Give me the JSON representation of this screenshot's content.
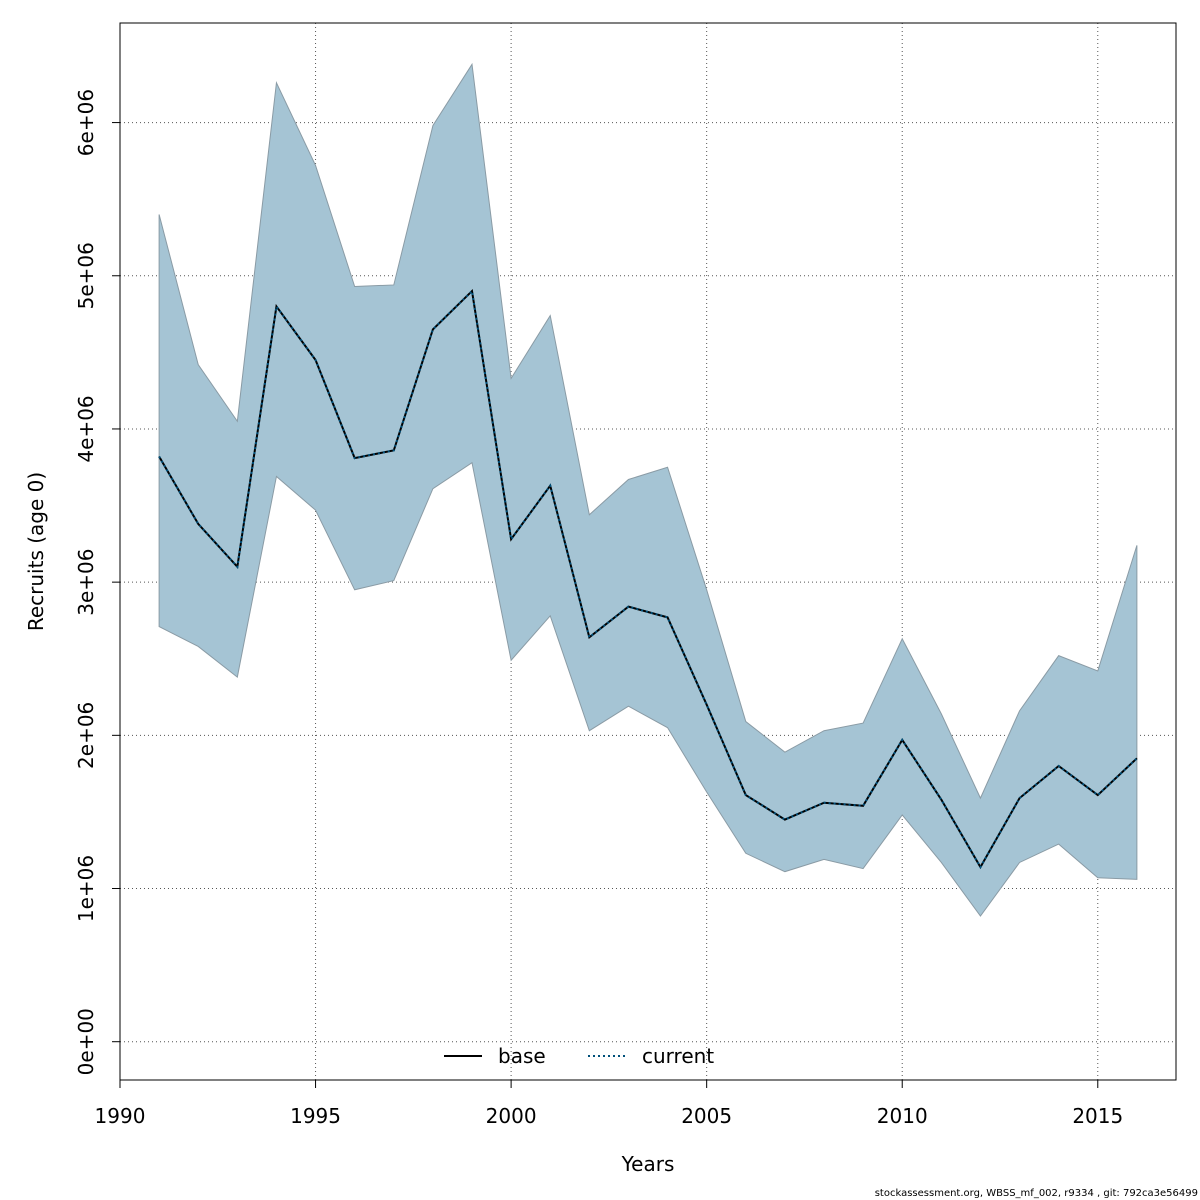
{
  "chart_data": {
    "type": "line",
    "xlabel": "Years",
    "ylabel": "Recruits (age 0)",
    "xlim": [
      1990,
      2017
    ],
    "ylim": [
      -250000,
      6650000
    ],
    "x_ticks": [
      1990,
      1995,
      2000,
      2005,
      2010,
      2015
    ],
    "x_tick_labels": [
      "1990",
      "1995",
      "2000",
      "2005",
      "2010",
      "2015"
    ],
    "y_ticks": [
      0,
      1000000,
      2000000,
      3000000,
      4000000,
      5000000,
      6000000
    ],
    "y_tick_labels": [
      "0e+00",
      "1e+06",
      "2e+06",
      "3e+06",
      "4e+06",
      "5e+06",
      "6e+06"
    ],
    "grid": true,
    "legend_position": "bottom-center",
    "x": [
      1991,
      1992,
      1993,
      1994,
      1995,
      1996,
      1997,
      1998,
      1999,
      2000,
      2001,
      2002,
      2003,
      2004,
      2005,
      2006,
      2007,
      2008,
      2009,
      2010,
      2011,
      2012,
      2013,
      2014,
      2015,
      2016
    ],
    "series": [
      {
        "name": "base",
        "style": "solid",
        "color": "#000000",
        "values": [
          3820000,
          3380000,
          3100000,
          4800000,
          4450000,
          3810000,
          3860000,
          4650000,
          4900000,
          3280000,
          3630000,
          2640000,
          2840000,
          2770000,
          2200000,
          1610000,
          1450000,
          1560000,
          1540000,
          1970000,
          1580000,
          1140000,
          1590000,
          1800000,
          1610000,
          1850000
        ]
      },
      {
        "name": "current",
        "style": "dotted",
        "color": "#00507a",
        "values": [
          3820000,
          3380000,
          3100000,
          4800000,
          4450000,
          3810000,
          3860000,
          4650000,
          4900000,
          3280000,
          3630000,
          2640000,
          2840000,
          2770000,
          2200000,
          1610000,
          1450000,
          1560000,
          1540000,
          1970000,
          1580000,
          1140000,
          1590000,
          1800000,
          1610000,
          1850000
        ]
      }
    ],
    "confidence_band": {
      "color": "#a5c4d4",
      "lower": [
        2710000,
        2580000,
        2380000,
        3690000,
        3470000,
        2950000,
        3010000,
        3610000,
        3780000,
        2490000,
        2780000,
        2030000,
        2190000,
        2050000,
        1630000,
        1230000,
        1110000,
        1190000,
        1130000,
        1480000,
        1170000,
        820000,
        1170000,
        1290000,
        1070000,
        1060000
      ],
      "upper": [
        5400000,
        4420000,
        4050000,
        6260000,
        5720000,
        4930000,
        4940000,
        5980000,
        6380000,
        4330000,
        4740000,
        3440000,
        3670000,
        3750000,
        2950000,
        2090000,
        1890000,
        2030000,
        2080000,
        2630000,
        2140000,
        1590000,
        2160000,
        2520000,
        2420000,
        3240000
      ]
    }
  },
  "footer": "stockassessment.org, WBSS_mf_002, r9334 , git: 792ca3e56499"
}
